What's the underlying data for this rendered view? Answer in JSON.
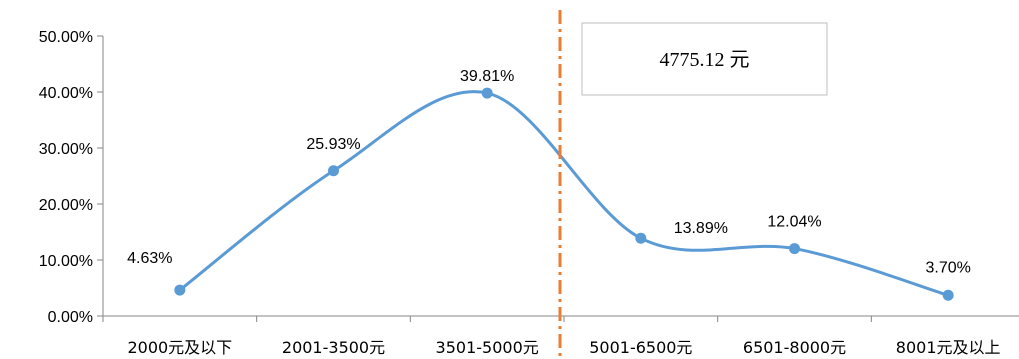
{
  "chart_data": {
    "type": "line",
    "categories": [
      "2000元及以下",
      "2001-3500元",
      "3501-5000元",
      "5001-6500元",
      "6501-8000元",
      "8001元及以上"
    ],
    "values": [
      4.63,
      25.93,
      39.81,
      13.89,
      12.04,
      3.7
    ],
    "data_labels": [
      "4.63%",
      "25.93%",
      "39.81%",
      "13.89%",
      "12.04%",
      "3.70%"
    ],
    "y_ticks": [
      "0.00%",
      "10.00%",
      "20.00%",
      "30.00%",
      "40.00%",
      "50.00%"
    ],
    "ylim": [
      0,
      50
    ],
    "smooth": true,
    "grid": false,
    "title": "",
    "xlabel": "",
    "ylabel": "",
    "line_color": "#5b9bd5",
    "reference_line": {
      "value_text": "4775.12 元",
      "color": "#ed7d31",
      "style": "dash-dot"
    }
  }
}
